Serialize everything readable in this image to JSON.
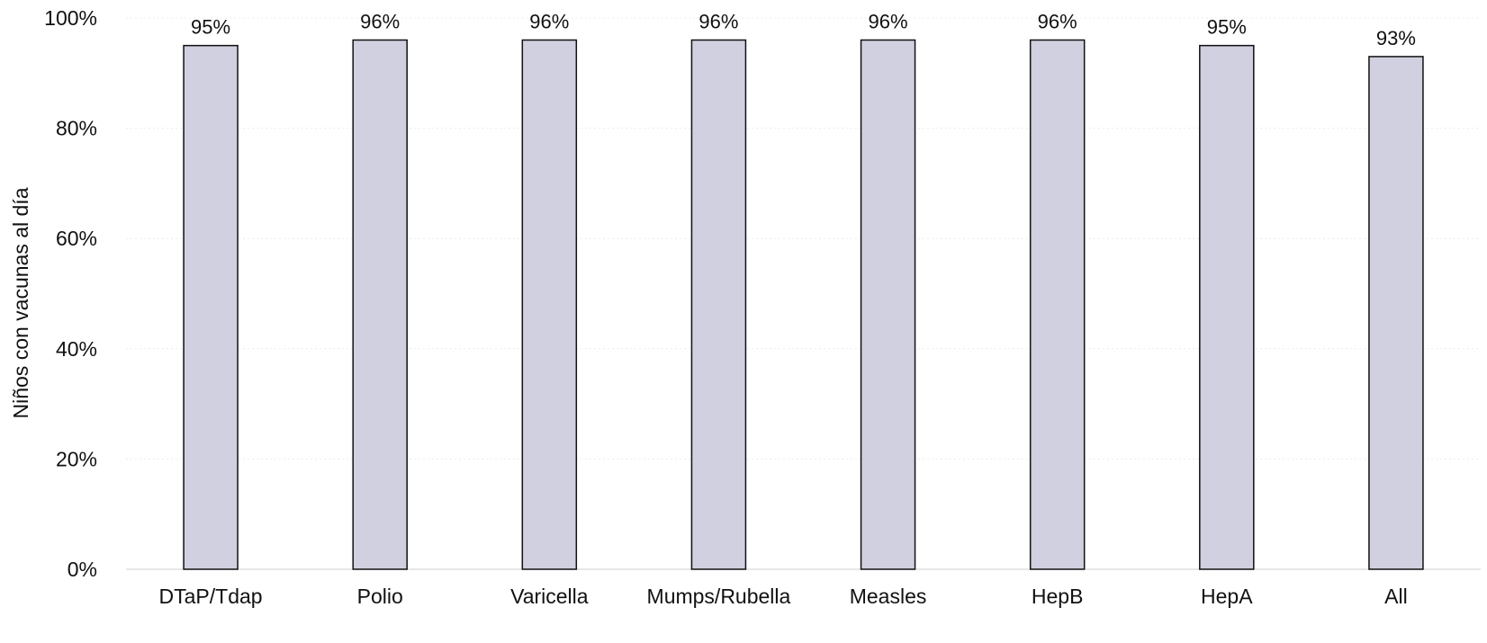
{
  "chart_data": {
    "type": "bar",
    "title": "",
    "xlabel": "",
    "ylabel": "Niños con vacunas al día",
    "categories": [
      "DTaP/Tdap",
      "Polio",
      "Varicella",
      "Mumps/Rubella",
      "Measles",
      "HepB",
      "HepA",
      "All"
    ],
    "values": [
      95,
      96,
      96,
      96,
      96,
      96,
      95,
      93
    ],
    "data_labels": [
      "95%",
      "96%",
      "96%",
      "96%",
      "96%",
      "96%",
      "95%",
      "93%"
    ],
    "ylim": [
      0,
      100
    ],
    "yticks": [
      0,
      20,
      40,
      60,
      80,
      100
    ],
    "ytick_labels": [
      "0%",
      "20%",
      "40%",
      "60%",
      "80%",
      "100%"
    ],
    "grid": true,
    "legend": "none",
    "colors": {
      "bar_fill": "#d0d0e0",
      "bar_stroke": "#111111"
    }
  }
}
